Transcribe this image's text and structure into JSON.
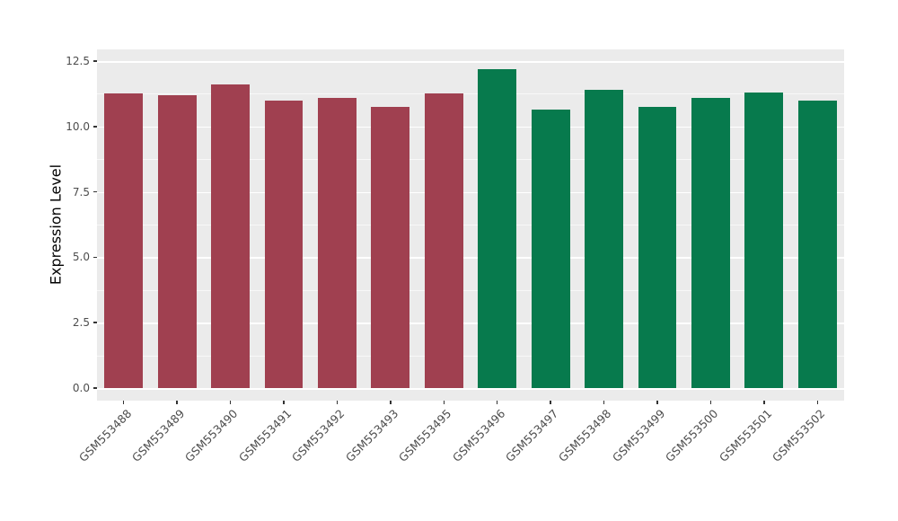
{
  "figure": {
    "background": "#FFFFFF",
    "panel_background": "#EBEBEB"
  },
  "chart_data": {
    "type": "bar",
    "title": "",
    "xlabel": "",
    "ylabel": "Expression Level",
    "categories": [
      "GSM553488",
      "GSM553489",
      "GSM553490",
      "GSM553491",
      "GSM553492",
      "GSM553493",
      "GSM553495",
      "GSM553496",
      "GSM553497",
      "GSM553498",
      "GSM553499",
      "GSM553500",
      "GSM553501",
      "GSM553502"
    ],
    "values": [
      11.25,
      11.2,
      11.6,
      11.0,
      11.1,
      10.75,
      11.25,
      12.2,
      10.65,
      11.4,
      10.75,
      11.1,
      11.3,
      11.0
    ],
    "groups": [
      0,
      0,
      0,
      0,
      0,
      0,
      0,
      1,
      1,
      1,
      1,
      1,
      1,
      1
    ],
    "group_colors": [
      "#A04050",
      "#077A4D"
    ],
    "ylim": [
      0,
      12.5
    ],
    "yticks": [
      0,
      2.5,
      5,
      7.5,
      10,
      12.5
    ],
    "ytick_labels": [
      "0.0",
      "2.5",
      "5.0",
      "7.5",
      "10.0",
      "12.5"
    ],
    "minor_yticks": [
      1.25,
      3.75,
      6.25,
      8.75,
      11.25
    ],
    "grid": true,
    "legend": "none",
    "x_label_angle": 45
  }
}
